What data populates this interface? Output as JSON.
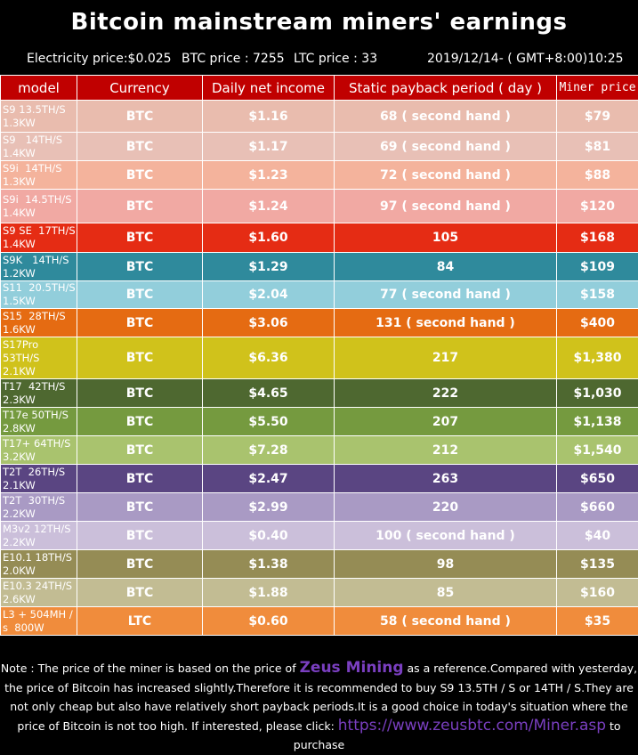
{
  "header": {
    "title": "Bitcoin mainstream miners' earnings",
    "electricity": "Electricity price:$0.025",
    "btc_price": "BTC price : 7255",
    "ltc_price": "LTC price : 33",
    "datetime": "2019/12/14- ( GMT+8:00)10:25"
  },
  "table": {
    "columns": [
      "model",
      "Currency",
      "Daily net income",
      "Static payback period ( day )",
      "Miner price"
    ],
    "rows": [
      {
        "model": "S9 13.5TH/S\n1.3KW",
        "currency": "BTC",
        "income": "$1.16",
        "payback": "68 ( second hand )",
        "price": "$79",
        "bg": "#e9bcae",
        "fg": "#ffffff"
      },
      {
        "model": "S9   14TH/S\n1.4KW",
        "currency": "BTC",
        "income": "$1.17",
        "payback": "69 ( second hand )",
        "price": "$81",
        "bg": "#e8c0b6",
        "fg": "#ffffff"
      },
      {
        "model": "S9i  14TH/S\n1.3KW",
        "currency": "BTC",
        "income": "$1.23",
        "payback": "72 ( second hand )",
        "price": "$88",
        "bg": "#f4b39c",
        "fg": "#ffffff"
      },
      {
        "model": "S9i  14.5TH/S\n1.4KW",
        "currency": "BTC",
        "income": "$1.24",
        "payback": "97 ( second hand )",
        "price": "$120",
        "bg": "#f1a9a3",
        "fg": "#ffffff"
      },
      {
        "model": "S9 SE  17TH/S\n1.4KW",
        "currency": "BTC",
        "income": "$1.60",
        "payback": "105",
        "price": "$168",
        "bg": "#e52c14",
        "fg": "#ffffff"
      },
      {
        "model": "S9K   14TH/S\n1.2KW",
        "currency": "BTC",
        "income": "$1.29",
        "payback": "84",
        "price": "$109",
        "bg": "#2f8a9c",
        "fg": "#ffffff"
      },
      {
        "model": "S11  20.5TH/S\n1.5KW",
        "currency": "BTC",
        "income": "$2.04",
        "payback": "77 ( second hand )",
        "price": "$158",
        "bg": "#92cedb",
        "fg": "#ffffff"
      },
      {
        "model": "S15  28TH/S\n1.6KW",
        "currency": "BTC",
        "income": "$3.06",
        "payback": "131 ( second hand )",
        "price": "$400",
        "bg": "#e56b12",
        "fg": "#ffffff"
      },
      {
        "model": "S17Pro\n53TH/S\n2.1KW",
        "currency": "BTC",
        "income": "$6.36",
        "payback": "217",
        "price": "$1,380",
        "bg": "#d0c21b",
        "fg": "#ffffff"
      },
      {
        "model": "T17  42TH/S\n2.3KW",
        "currency": "BTC",
        "income": "$4.65",
        "payback": "222",
        "price": "$1,030",
        "bg": "#4e6830",
        "fg": "#ffffff"
      },
      {
        "model": "T17e 50TH/S\n2.8KW",
        "currency": "BTC",
        "income": "$5.50",
        "payback": "207",
        "price": "$1,138",
        "bg": "#759a3f",
        "fg": "#ffffff"
      },
      {
        "model": "T17+ 64TH/S\n3.2KW",
        "currency": "BTC",
        "income": "$7.28",
        "payback": "212",
        "price": "$1,540",
        "bg": "#a9c36e",
        "fg": "#ffffff"
      },
      {
        "model": "T2T  26TH/S\n2.1KW",
        "currency": "BTC",
        "income": "$2.47",
        "payback": "263",
        "price": "$650",
        "bg": "#5a4582",
        "fg": "#ffffff"
      },
      {
        "model": "T2T  30TH/S\n2.2KW",
        "currency": "BTC",
        "income": "$2.99",
        "payback": "220",
        "price": "$660",
        "bg": "#a99ac4",
        "fg": "#ffffff"
      },
      {
        "model": "M3v2 12TH/S\n2.2KW",
        "currency": "BTC",
        "income": "$0.40",
        "payback": "100 ( second hand )",
        "price": "$40",
        "bg": "#cbbfda",
        "fg": "#ffffff"
      },
      {
        "model": "E10.1 18TH/S\n2.0KW",
        "currency": "BTC",
        "income": "$1.38",
        "payback": "98",
        "price": "$135",
        "bg": "#958c55",
        "fg": "#ffffff"
      },
      {
        "model": "E10.3 24TH/S\n2.6KW",
        "currency": "BTC",
        "income": "$1.88",
        "payback": "85",
        "price": "$160",
        "bg": "#c2bc93",
        "fg": "#ffffff"
      },
      {
        "model": "L3 + 504MH /\ns  800W",
        "currency": "LTC",
        "income": "$0.60",
        "payback": "58 ( second hand )",
        "price": "$35",
        "bg": "#f08c3c",
        "fg": "#ffffff"
      }
    ]
  },
  "note": {
    "part1": "Note : The price of the miner is based on the price of ",
    "brand": "Zeus Mining",
    "part2": " as a reference.Compared with yesterday, the price of Bitcoin has increased slightly.Therefore it is recommended to buy S9 13.5TH / S or 14TH / S.They are not only cheap but also have relatively short payback periods.It is a good choice in today's situation where the price of Bitcoin is not too high. If interested, please click: ",
    "url": "https://www.zeusbtc.com/Miner.asp",
    "part3": " to purchase"
  }
}
